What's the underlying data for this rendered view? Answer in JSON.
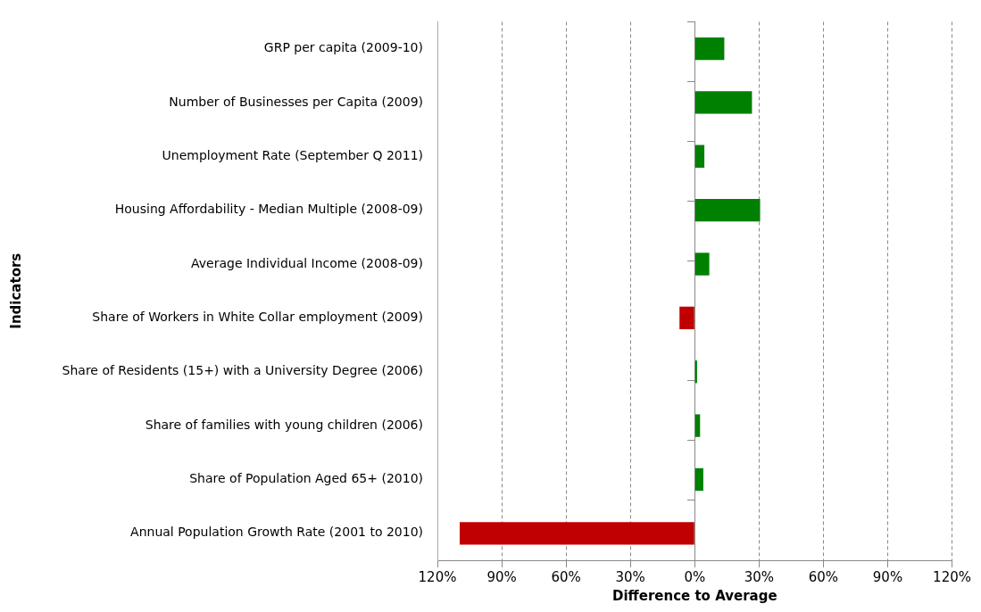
{
  "chart_data": {
    "type": "bar",
    "orientation": "horizontal",
    "xlabel": "Difference to Average",
    "ylabel": "Indicators",
    "categories": [
      "GRP per capita (2009-10)",
      "Number of Businesses per Capita (2009)",
      "Unemployment Rate (September Q 2011)",
      "Housing Affordability - Median Multiple (2008-09)",
      "Average Individual Income (2008-09)",
      "Share of Workers in White Collar employment (2009)",
      "Share of Residents (15+) with a University Degree (2006)",
      "Share of families with young children (2006)",
      "Share of Population Aged 65+ (2010)",
      "Annual Population Growth Rate (2001 to 2010)"
    ],
    "values": [
      13.8,
      26.7,
      4.5,
      30.5,
      6.8,
      -7.1,
      1.1,
      2.5,
      4.0,
      -109.6
    ],
    "colors": [
      "#008000",
      "#008000",
      "#008000",
      "#008000",
      "#008000",
      "#c00000",
      "#008000",
      "#008000",
      "#008000",
      "#c00000"
    ],
    "xlim": [
      -120,
      120
    ],
    "xticks": [
      {
        "value": -120,
        "label": "120%"
      },
      {
        "value": -90,
        "label": "90%"
      },
      {
        "value": -60,
        "label": "60%"
      },
      {
        "value": -30,
        "label": "30%"
      },
      {
        "value": 0,
        "label": "0%"
      },
      {
        "value": 30,
        "label": "30%"
      },
      {
        "value": 60,
        "label": "60%"
      },
      {
        "value": 90,
        "label": "90%"
      },
      {
        "value": 120,
        "label": "120%"
      }
    ],
    "grid": "x",
    "legend": false
  }
}
